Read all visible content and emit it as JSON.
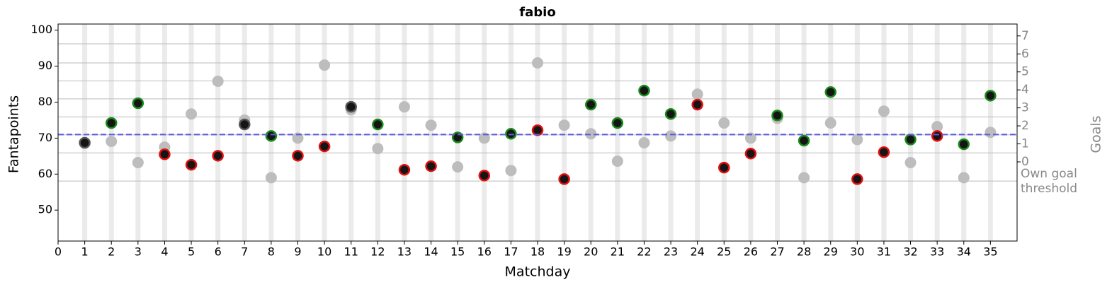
{
  "chart_data": {
    "type": "scatter",
    "title": "fabio",
    "x_label": "Matchday",
    "y_label": "Fantapoints",
    "y2_label": "Goals",
    "x": [
      1,
      2,
      3,
      4,
      5,
      6,
      7,
      8,
      9,
      10,
      11,
      12,
      13,
      14,
      15,
      16,
      17,
      18,
      19,
      20,
      21,
      22,
      23,
      24,
      25,
      26,
      27,
      28,
      29,
      30,
      31,
      32,
      33,
      34,
      35
    ],
    "xlim": [
      0,
      36
    ],
    "xticks": [
      0,
      1,
      2,
      3,
      4,
      5,
      6,
      7,
      8,
      9,
      10,
      11,
      12,
      13,
      14,
      15,
      16,
      17,
      18,
      19,
      20,
      21,
      22,
      23,
      24,
      25,
      26,
      27,
      28,
      29,
      30,
      31,
      32,
      33,
      34,
      35
    ],
    "ylim": [
      41.4,
      101.7
    ],
    "yticks": [
      50,
      60,
      70,
      80,
      90,
      100
    ],
    "y2lim": [
      -4.4,
      7.66
    ],
    "y2ticks": [
      0,
      1,
      2,
      3,
      4,
      5,
      6,
      7
    ],
    "y2grid": [
      0.5,
      1.5,
      2.5,
      3.5,
      4.5,
      5.5,
      6.56
    ],
    "own_goal_threshold": {
      "label": "Own goal threshold",
      "value": 58.06
    },
    "mean": {
      "value": 71,
      "color": "#5b5be0"
    },
    "series": [
      {
        "color": "#bdbdbd",
        "values": [
          68.7,
          69.1,
          63.2,
          67.5,
          76.7,
          85.8,
          75.0,
          59.0,
          70.0,
          90.3,
          77.9,
          67.1,
          78.7,
          73.6,
          62.0,
          70.0,
          61.0,
          90.9,
          73.6,
          71.2,
          63.6,
          68.7,
          70.6,
          82.2,
          74.2,
          70.0,
          75.5,
          59.0,
          74.2,
          69.6,
          77.5,
          63.2,
          73.2,
          59.0,
          71.6
        ]
      },
      {
        "color": "#151515",
        "values": [
          68.7,
          74.2,
          79.7,
          65.5,
          62.6,
          65.1,
          73.8,
          70.6,
          65.1,
          67.7,
          78.7,
          73.8,
          61.2,
          62.2,
          70.2,
          59.6,
          71.2,
          72.2,
          58.6,
          79.3,
          74.2,
          83.2,
          76.7,
          79.3,
          61.8,
          65.7,
          76.3,
          69.3,
          82.8,
          58.6,
          66.1,
          69.6,
          70.6,
          68.3,
          81.8
        ],
        "edgecolors": [
          "#555",
          "#1a8a1a",
          "#1a8a1a",
          "#e01010",
          "#e01010",
          "#e01010",
          "#555",
          "#1a8a1a",
          "#e01010",
          "#e01010",
          "#555",
          "#1a8a1a",
          "#e01010",
          "#e01010",
          "#1a8a1a",
          "#e01010",
          "#1a8a1a",
          "#e01010",
          "#e01010",
          "#1a8a1a",
          "#1a8a1a",
          "#1a8a1a",
          "#1a8a1a",
          "#e01010",
          "#e01010",
          "#e01010",
          "#1a8a1a",
          "#1a8a1a",
          "#1a8a1a",
          "#e01010",
          "#e01010",
          "#1a8a1a",
          "#e01010",
          "#1a8a1a",
          "#1a8a1a"
        ]
      }
    ]
  }
}
